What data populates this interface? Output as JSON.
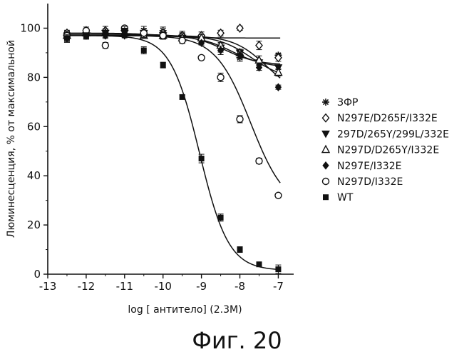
{
  "caption": "Фиг. 20",
  "chart_data": {
    "type": "scatter",
    "title": "",
    "xlabel": "log [ антитело] (2.3M)",
    "ylabel": "Люминесценция, % от максимальной",
    "xlim": [
      -13,
      -6.6
    ],
    "ylim": [
      0,
      110
    ],
    "x_ticks": [
      -13,
      -12,
      -11,
      -10,
      -9,
      -8,
      -7
    ],
    "x_tick_labels": [
      "-13",
      "-12",
      "-11",
      "-10",
      "-9",
      "-8",
      "-7"
    ],
    "y_ticks": [
      0,
      20,
      40,
      60,
      80,
      100
    ],
    "y_tick_labels": [
      "0",
      "20",
      "40",
      "60",
      "80",
      "100"
    ],
    "legend_position": "right",
    "x": [
      -12.5,
      -12,
      -11.5,
      -11,
      -10.5,
      -10,
      -9.5,
      -9,
      -8.5,
      -8,
      -7.5,
      -7
    ],
    "series": [
      {
        "name": "ЗФР",
        "marker": "asterisk",
        "values": [
          97,
          98,
          98,
          97,
          99,
          99,
          97,
          96,
          92,
          88,
          86,
          89
        ],
        "fit": {
          "bottom": 85,
          "top": 97.5,
          "logec50": -8.4,
          "hill": 1
        }
      },
      {
        "name": "N297E/D265F/I332E",
        "marker": "diamond-open",
        "values": [
          98,
          99,
          99,
          99,
          98,
          98,
          97,
          97,
          98,
          100,
          93,
          88
        ],
        "fit": {
          "bottom": 96,
          "top": 98,
          "logec50": -10,
          "hill": 1
        }
      },
      {
        "name": "297D/265Y/299L/332E",
        "marker": "triangle-down-filled",
        "values": [
          96,
          97,
          98,
          98,
          98,
          97,
          96,
          95,
          92,
          90,
          86,
          84
        ],
        "fit": {
          "bottom": 84,
          "top": 97,
          "logec50": -8.2,
          "hill": 1
        }
      },
      {
        "name": "N297D/D265Y/I332E",
        "marker": "triangle-up-open",
        "values": [
          97,
          98,
          98,
          98,
          97,
          97,
          96,
          96,
          93,
          90,
          87,
          82
        ],
        "fit": {
          "bottom": 79,
          "top": 97,
          "logec50": -7.7,
          "hill": 1
        }
      },
      {
        "name": "N297E/I332E",
        "marker": "diamond-filled",
        "values": [
          96,
          97,
          97,
          97,
          98,
          97,
          95,
          94,
          91,
          89,
          84,
          76
        ],
        "fit": {
          "bottom": 72,
          "top": 97,
          "logec50": -7.3,
          "hill": 1
        }
      },
      {
        "name": "N297D/I332E",
        "marker": "circle-open",
        "values": [
          97,
          99,
          93,
          100,
          98,
          97,
          95,
          88,
          80,
          63,
          46,
          32
        ],
        "fit": {
          "bottom": 26,
          "top": 97,
          "logec50": -7.72,
          "hill": 0.95
        }
      },
      {
        "name": "WT",
        "marker": "square-filled",
        "values": [
          96,
          97,
          98,
          99,
          91,
          85,
          72,
          47,
          23,
          10,
          4,
          2
        ],
        "fit": {
          "bottom": 1.5,
          "top": 97,
          "logec50": -9.05,
          "hill": 1.15
        }
      }
    ]
  }
}
